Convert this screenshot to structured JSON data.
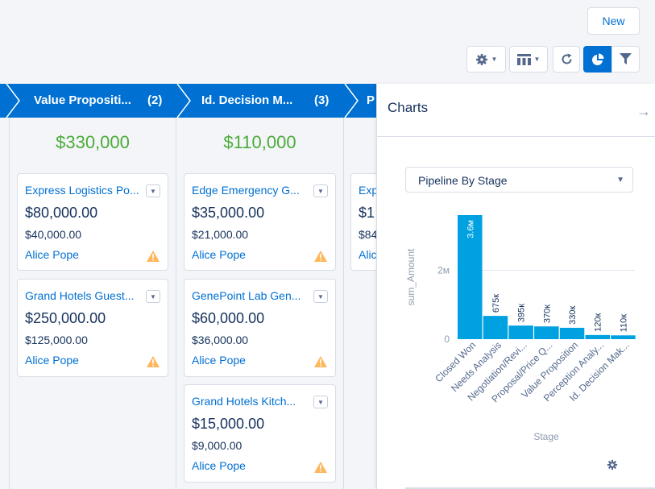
{
  "header": {
    "new_label": "New",
    "tools": [
      {
        "icon": "gear-icon"
      },
      {
        "icon": "table-columns-icon"
      },
      {
        "icon": "refresh-icon"
      },
      {
        "icon": "pie-chart-icon"
      },
      {
        "icon": "filter-icon"
      }
    ]
  },
  "stages": [
    {
      "name": "Value Propositi...",
      "count": "(2)",
      "total": "$330,000"
    },
    {
      "name": "Id. Decision M...",
      "count": "(3)",
      "total": "$110,000"
    },
    {
      "name": "P",
      "count": ""
    }
  ],
  "columns": [
    {
      "cards": [
        {
          "title": "Express Logistics Po...",
          "amount": "$80,000.00",
          "expected": "$40,000.00",
          "owner": "Alice Pope"
        },
        {
          "title": "Grand Hotels Guest...",
          "amount": "$250,000.00",
          "expected": "$125,000.00",
          "owner": "Alice Pope"
        }
      ]
    },
    {
      "cards": [
        {
          "title": "Edge Emergency G...",
          "amount": "$35,000.00",
          "expected": "$21,000.00",
          "owner": "Alice Pope"
        },
        {
          "title": "GenePoint Lab Gen...",
          "amount": "$60,000.00",
          "expected": "$36,000.00",
          "owner": "Alice Pope"
        },
        {
          "title": "Grand Hotels Kitch...",
          "amount": "$15,000.00",
          "expected": "$9,000.00",
          "owner": "Alice Pope"
        }
      ]
    },
    {
      "cards": [
        {
          "title": "Exp",
          "amount": "$1",
          "expected": "$84",
          "owner": "Alic"
        }
      ]
    }
  ],
  "panel": {
    "title": "Charts",
    "selected_chart": "Pipeline By Stage"
  },
  "chart_data": {
    "type": "bar",
    "title": "",
    "xlabel": "Stage",
    "ylabel": "sum_Amount",
    "categories": [
      "Closed Won",
      "Needs Analysis",
      "Negotiation/Revi...",
      "Proposal/Price Q...",
      "Value Proposition",
      "Perception Analy...",
      "Id. Decision Mak..."
    ],
    "values": [
      3600000,
      675000,
      395000,
      370000,
      330000,
      120000,
      110000
    ],
    "data_labels": [
      "3.6м",
      "675к",
      "395к",
      "370к",
      "330к",
      "120к",
      "110к"
    ],
    "y_ticks": [
      {
        "value": 0,
        "label": "0"
      },
      {
        "value": 2000000,
        "label": "2м"
      }
    ],
    "ylim": [
      0,
      3600000
    ],
    "grid": true,
    "bar_color": "#00a1e0"
  }
}
